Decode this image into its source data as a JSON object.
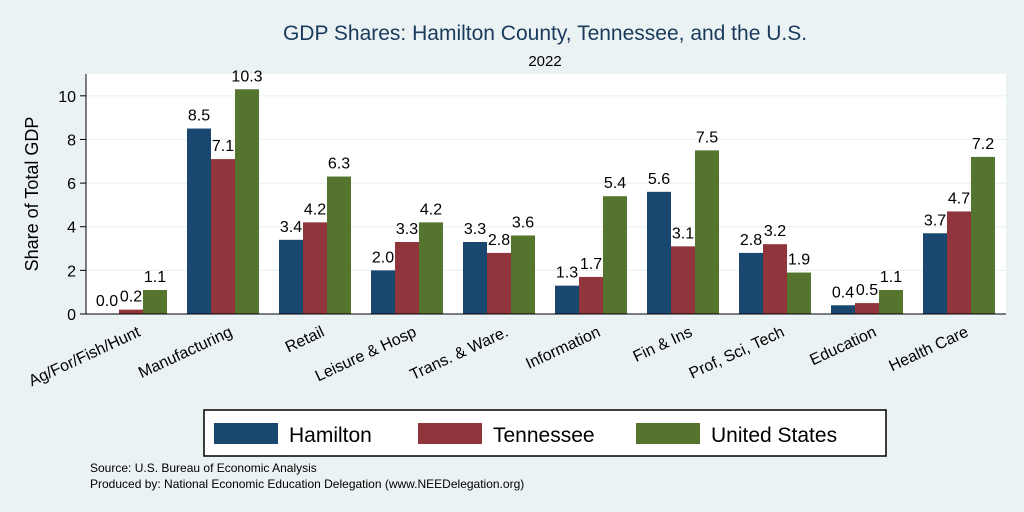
{
  "chart_data": {
    "type": "bar",
    "title": "GDP Shares: Hamilton County, Tennessee, and the U.S.",
    "subtitle": "2022",
    "xlabel": "",
    "ylabel": "Share of Total GDP",
    "ylim": [
      0,
      11
    ],
    "yticks": [
      0,
      2,
      4,
      6,
      8,
      10
    ],
    "grid": true,
    "legend_position": "bottom",
    "categories": [
      "Ag/For/Fish/Hunt",
      "Manufacturing",
      "Retail",
      "Leisure & Hosp",
      "Trans. & Ware.",
      "Information",
      "Fin & Ins",
      "Prof, Sci, Tech",
      "Education",
      "Health Care"
    ],
    "series": [
      {
        "name": "Hamilton",
        "color": "#1a476f",
        "values": [
          0.0,
          8.5,
          3.4,
          2.0,
          3.3,
          1.3,
          5.6,
          2.8,
          0.4,
          3.7
        ],
        "labels": [
          "0.0",
          "8.5",
          "3.4",
          "2.0",
          "3.3",
          "1.3",
          "5.6",
          "2.8",
          "0.4",
          "3.7"
        ]
      },
      {
        "name": "Tennessee",
        "color": "#90353b",
        "values": [
          0.2,
          7.1,
          4.2,
          3.3,
          2.8,
          1.7,
          3.1,
          3.2,
          0.5,
          4.7
        ],
        "labels": [
          "0.2",
          "7.1",
          "4.2",
          "3.3",
          "2.8",
          "1.7",
          "3.1",
          "3.2",
          "0.5",
          "4.7"
        ]
      },
      {
        "name": "United States",
        "color": "#55752f",
        "values": [
          1.1,
          10.3,
          6.3,
          4.2,
          3.6,
          5.4,
          7.5,
          1.9,
          1.1,
          7.2
        ],
        "labels": [
          "1.1",
          "10.3",
          "6.3",
          "4.2",
          "3.6",
          "5.4",
          "7.5",
          "1.9",
          "1.1",
          "7.2"
        ]
      }
    ]
  },
  "notes": {
    "source": "Source: U.S. Bureau of Economic Analysis",
    "produced": "Produced by: National Economic Education Delegation (www.NEEDelegation.org)"
  }
}
